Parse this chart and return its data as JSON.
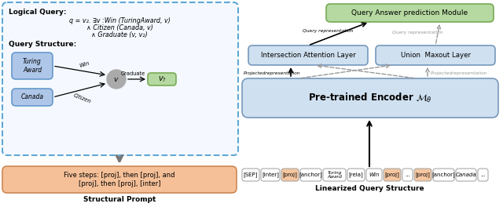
{
  "logical_query_label": "Logical Query:",
  "logical_query_lines": [
    "q = v₂. ∃v :Win (TuringAward, v)",
    "∧ Citizen (Canada, v)",
    "∧ Graduate (v, v₂)"
  ],
  "query_structure_label": "Query Structure:",
  "node_turing": "Turing\nAward",
  "node_canada": "Canada",
  "node_v": "v",
  "node_v2": "v₂",
  "edge_win": "Win",
  "edge_citizen": "Citizen",
  "edge_graduate": "Graduate",
  "box_encoder": "Pre-trained Encoder $\\mathcal{M}_\\theta$",
  "box_intersection": "Intersection Attention Layer",
  "box_union": "Union  Maxout Layer",
  "box_answer": "Query Answer prediction Module",
  "label_query_rep_left": "Query representation",
  "label_query_rep_right": "Query representation",
  "label_proj_left": "Projectedrepresentation",
  "label_proj_right": "Projectedrepresentation",
  "structural_prompt_text": "Five steps: [proj], then [proj], and\n[proj], then [proj], [inter]",
  "structural_prompt_label": "Structural Prompt",
  "linearized_label": "Linearized Query Structure",
  "tokens": [
    "[SEP]",
    "[inter]",
    "[proj]",
    "[anchor]",
    "Turing\nAward",
    "[rela]",
    "Win",
    "[proj]",
    "...",
    "[proj]",
    "[anchor]",
    "Canada",
    "..."
  ],
  "token_colors": [
    "white",
    "white",
    "#f5c6a0",
    "white",
    "white",
    "white",
    "white",
    "#f5c6a0",
    "white",
    "#f5c6a0",
    "white",
    "white",
    "white"
  ],
  "token_widths": [
    22,
    24,
    22,
    27,
    29,
    22,
    20,
    22,
    13,
    22,
    27,
    26,
    13
  ],
  "color_blue_light": "#cfe0f0",
  "color_blue_mid": "#b8d0e8",
  "color_green_box": "#b5d9a0",
  "color_orange_prompt": "#f5c098",
  "color_dashed_box_edge": "#5fa8d3",
  "color_node_blue": "#aec6e8",
  "color_node_green": "#b5d9a0",
  "color_node_gray": "#aaaaaa",
  "color_arrow_solid": "black",
  "color_arrow_dashed": "#999999"
}
